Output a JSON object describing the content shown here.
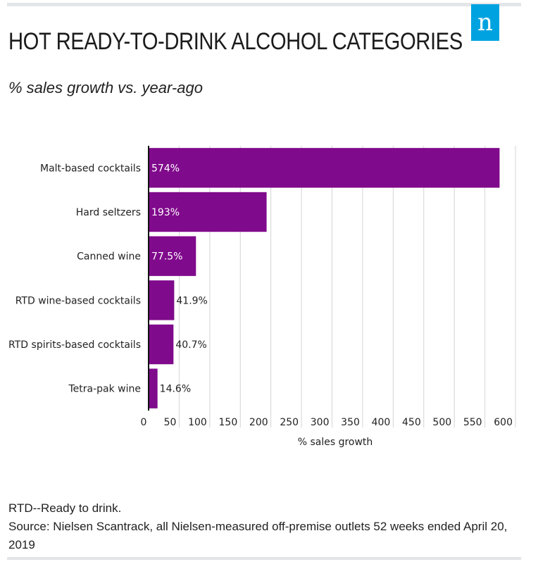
{
  "brand": {
    "logo_letter": "n",
    "accent": "#00a3e0",
    "bar_color": "#800a8c"
  },
  "header": {
    "title": "HOT READY-TO-DRINK ALCOHOL CATEGORIES",
    "subtitle": "% sales growth vs. year-ago"
  },
  "chart_data": {
    "type": "bar",
    "orientation": "horizontal",
    "categories": [
      "Malt-based cocktails",
      "Hard seltzers",
      "Canned wine",
      "RTD wine-based cocktails",
      "RTD spirits-based cocktails",
      "Tetra-pak wine"
    ],
    "values": [
      574,
      193,
      77.5,
      41.9,
      40.7,
      14.6
    ],
    "data_labels": [
      "574%",
      "193%",
      "77.5%",
      "41.9%",
      "40.7%",
      "14.6%"
    ],
    "title": "HOT READY-TO-DRINK ALCOHOL CATEGORIES",
    "xlabel": "% sales growth",
    "ylabel": "",
    "xlim": [
      0,
      600
    ],
    "x_ticks": [
      0,
      50,
      100,
      150,
      200,
      250,
      300,
      350,
      400,
      450,
      500,
      550,
      600
    ],
    "grid": true
  },
  "footer": {
    "note": "RTD--Ready to drink.",
    "source": "Source: Nielsen Scantrack, all Nielsen-measured off-premise outlets 52 weeks ended April 20, 2019"
  }
}
